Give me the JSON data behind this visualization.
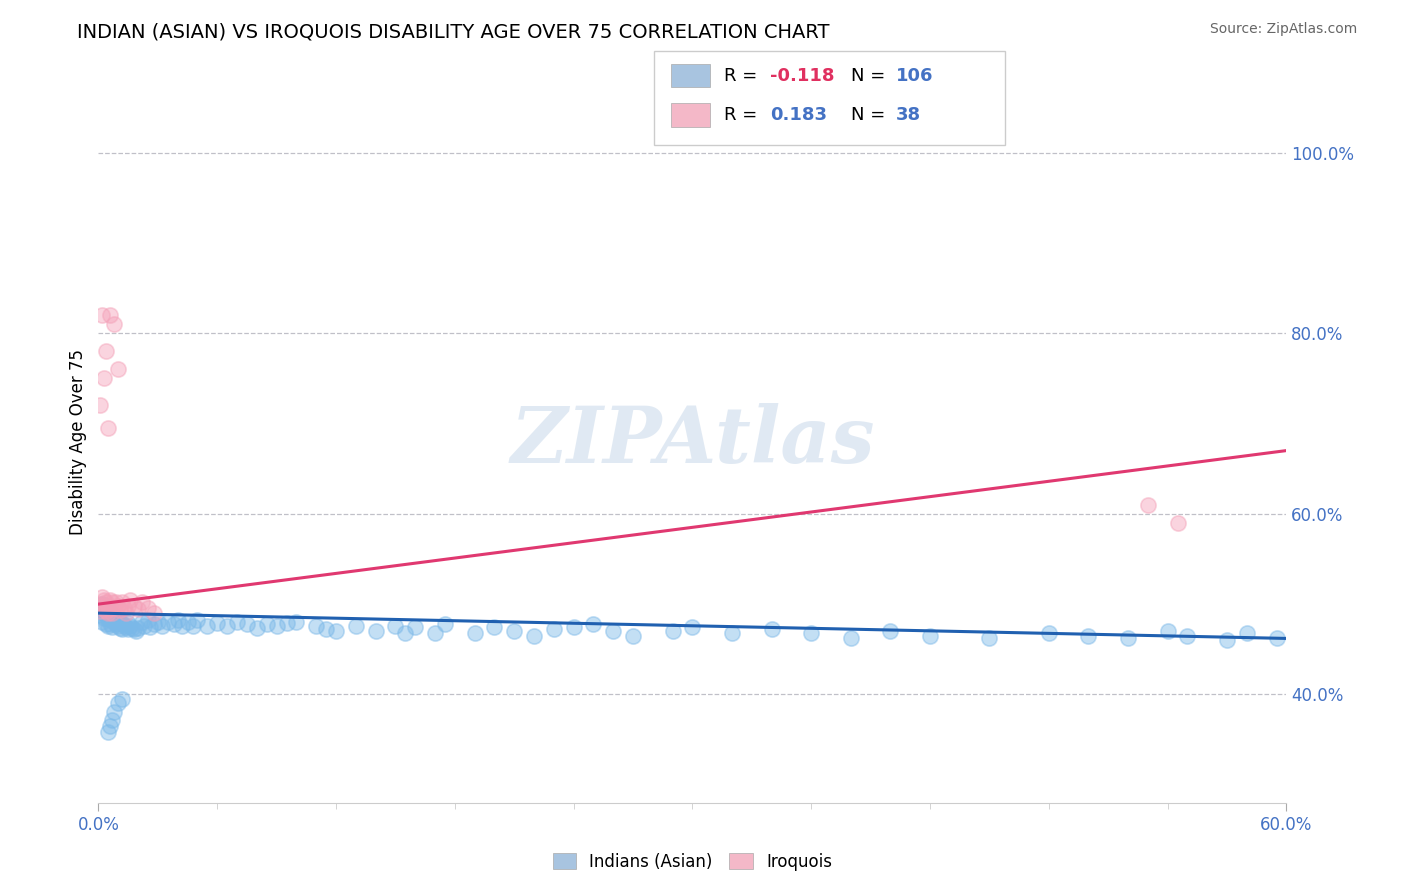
{
  "title": "INDIAN (ASIAN) VS IROQUOIS DISABILITY AGE OVER 75 CORRELATION CHART",
  "source": "Source: ZipAtlas.com",
  "ylabel": "Disability Age Over 75",
  "xlim": [
    0.0,
    0.6
  ],
  "ylim": [
    0.28,
    1.08
  ],
  "ytick_vals": [
    0.4,
    0.6,
    0.8,
    1.0
  ],
  "ytick_labels": [
    "40.0%",
    "60.0%",
    "80.0%",
    "100.0%"
  ],
  "legend_entries": [
    {
      "label": "Indians (Asian)",
      "R": "-0.118",
      "N": "106",
      "swatch_color": "#a8c4e0"
    },
    {
      "label": "Iroquois",
      "R": "0.183",
      "N": "38",
      "swatch_color": "#f4b8c8"
    }
  ],
  "blue_scatter_x": [
    0.001,
    0.001,
    0.002,
    0.002,
    0.002,
    0.003,
    0.003,
    0.003,
    0.004,
    0.004,
    0.004,
    0.005,
    0.005,
    0.005,
    0.005,
    0.006,
    0.006,
    0.006,
    0.007,
    0.007,
    0.007,
    0.008,
    0.008,
    0.009,
    0.009,
    0.01,
    0.01,
    0.011,
    0.011,
    0.012,
    0.012,
    0.013,
    0.014,
    0.015,
    0.015,
    0.016,
    0.017,
    0.018,
    0.019,
    0.02,
    0.022,
    0.023,
    0.025,
    0.026,
    0.028,
    0.03,
    0.032,
    0.035,
    0.038,
    0.04,
    0.042,
    0.045,
    0.048,
    0.05,
    0.055,
    0.06,
    0.065,
    0.07,
    0.075,
    0.08,
    0.085,
    0.09,
    0.095,
    0.1,
    0.11,
    0.115,
    0.12,
    0.13,
    0.14,
    0.15,
    0.155,
    0.16,
    0.17,
    0.175,
    0.19,
    0.2,
    0.21,
    0.22,
    0.23,
    0.24,
    0.25,
    0.26,
    0.27,
    0.29,
    0.3,
    0.32,
    0.34,
    0.36,
    0.38,
    0.4,
    0.42,
    0.45,
    0.48,
    0.5,
    0.52,
    0.54,
    0.55,
    0.57,
    0.58,
    0.595,
    0.005,
    0.006,
    0.007,
    0.008,
    0.01,
    0.012
  ],
  "blue_scatter_y": [
    0.495,
    0.488,
    0.5,
    0.492,
    0.48,
    0.496,
    0.49,
    0.485,
    0.492,
    0.488,
    0.478,
    0.493,
    0.488,
    0.484,
    0.476,
    0.49,
    0.484,
    0.478,
    0.488,
    0.482,
    0.475,
    0.486,
    0.48,
    0.484,
    0.478,
    0.482,
    0.476,
    0.48,
    0.474,
    0.479,
    0.472,
    0.477,
    0.475,
    0.479,
    0.472,
    0.476,
    0.474,
    0.472,
    0.47,
    0.474,
    0.48,
    0.476,
    0.482,
    0.475,
    0.478,
    0.48,
    0.476,
    0.48,
    0.478,
    0.482,
    0.476,
    0.48,
    0.476,
    0.482,
    0.476,
    0.479,
    0.476,
    0.48,
    0.478,
    0.474,
    0.478,
    0.476,
    0.479,
    0.48,
    0.476,
    0.472,
    0.47,
    0.476,
    0.47,
    0.476,
    0.468,
    0.475,
    0.468,
    0.478,
    0.468,
    0.475,
    0.47,
    0.465,
    0.472,
    0.475,
    0.478,
    0.47,
    0.465,
    0.47,
    0.475,
    0.468,
    0.472,
    0.468,
    0.462,
    0.47,
    0.465,
    0.462,
    0.468,
    0.465,
    0.462,
    0.47,
    0.465,
    0.46,
    0.468,
    0.462,
    0.358,
    0.365,
    0.372,
    0.38,
    0.39,
    0.395
  ],
  "pink_scatter_x": [
    0.001,
    0.001,
    0.002,
    0.002,
    0.003,
    0.003,
    0.004,
    0.004,
    0.005,
    0.005,
    0.006,
    0.006,
    0.007,
    0.007,
    0.008,
    0.009,
    0.01,
    0.011,
    0.012,
    0.013,
    0.014,
    0.015,
    0.016,
    0.018,
    0.02,
    0.022,
    0.025,
    0.028,
    0.001,
    0.002,
    0.003,
    0.004,
    0.005,
    0.006,
    0.008,
    0.01,
    0.53,
    0.545
  ],
  "pink_scatter_y": [
    0.5,
    0.492,
    0.508,
    0.498,
    0.505,
    0.495,
    0.502,
    0.492,
    0.498,
    0.49,
    0.505,
    0.495,
    0.502,
    0.49,
    0.496,
    0.502,
    0.498,
    0.494,
    0.502,
    0.496,
    0.49,
    0.498,
    0.504,
    0.498,
    0.495,
    0.502,
    0.496,
    0.49,
    0.72,
    0.82,
    0.75,
    0.78,
    0.695,
    0.82,
    0.81,
    0.76,
    0.61,
    0.59
  ],
  "blue_trend_x": [
    0.0,
    0.6
  ],
  "blue_trend_y": [
    0.49,
    0.462
  ],
  "pink_trend_x": [
    0.0,
    0.6
  ],
  "pink_trend_y": [
    0.5,
    0.67
  ],
  "watermark": "ZIPAtlas",
  "dot_size": 120,
  "dot_alpha": 0.45,
  "blue_dot_color": "#7ab8e8",
  "pink_dot_color": "#f4a0b8",
  "blue_line_color": "#2060b0",
  "pink_line_color": "#e03870",
  "grid_color": "#c0c0c8",
  "title_fontsize": 14,
  "axis_tick_color": "#4472c4",
  "source_text": "Source: ZipAtlas.com"
}
